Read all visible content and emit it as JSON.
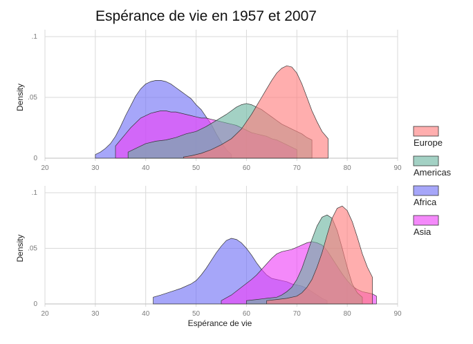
{
  "chart_data": {
    "type": "area",
    "title": "Espérance de vie en 1957 et 2007",
    "xlabel": "Espérance de vie",
    "ylabel": "Density",
    "xlim": [
      20,
      90
    ],
    "xticks": [
      20,
      30,
      40,
      50,
      60,
      70,
      80,
      90
    ],
    "ylim": [
      0,
      0.1
    ],
    "yticks": [
      {
        "value": 0,
        "label": "0"
      },
      {
        "value": 0.05,
        "label": ".05"
      },
      {
        "value": 0.1,
        "label": ".1"
      }
    ],
    "grid": true,
    "legend": {
      "placement": "right",
      "entries": [
        "Europe",
        "Americas",
        "Africa",
        "Asia"
      ]
    },
    "colors": {
      "Europe": "#ff7c7c",
      "Americas": "#6bb5a0",
      "Africa": "#6f6ff5",
      "Asia": "#ee40f7"
    },
    "panels": [
      {
        "year": 1957,
        "series": [
          {
            "name": "Africa",
            "x": [
              30,
              31,
              32,
              33,
              34,
              35,
              36,
              37,
              38,
              39,
              40,
              41,
              42,
              43,
              44,
              45,
              46,
              47,
              48,
              49,
              50,
              51,
              52,
              53,
              54,
              55,
              56,
              57
            ],
            "y": [
              0.003,
              0.005,
              0.008,
              0.012,
              0.018,
              0.026,
              0.035,
              0.043,
              0.051,
              0.057,
              0.061,
              0.063,
              0.064,
              0.064,
              0.063,
              0.061,
              0.058,
              0.055,
              0.052,
              0.049,
              0.044,
              0.04,
              0.034,
              0.028,
              0.02,
              0.013,
              0.007,
              0.003
            ]
          },
          {
            "name": "Asia",
            "x": [
              34,
              35,
              36,
              37,
              38,
              39,
              40,
              41,
              42,
              43,
              44,
              45,
              46,
              47,
              48,
              49,
              50,
              51,
              52,
              53,
              54,
              55,
              56,
              57,
              58,
              59,
              60,
              61,
              62,
              63,
              64,
              65,
              66,
              67,
              68,
              69,
              70
            ],
            "y": [
              0.01,
              0.015,
              0.02,
              0.025,
              0.029,
              0.033,
              0.035,
              0.037,
              0.038,
              0.039,
              0.039,
              0.038,
              0.038,
              0.037,
              0.036,
              0.035,
              0.034,
              0.033,
              0.033,
              0.032,
              0.031,
              0.03,
              0.029,
              0.028,
              0.027,
              0.025,
              0.023,
              0.021,
              0.02,
              0.019,
              0.018,
              0.016,
              0.015,
              0.013,
              0.011,
              0.009,
              0.007
            ]
          },
          {
            "name": "Americas",
            "x": [
              36.5,
              38,
              40,
              42,
              44,
              46,
              48,
              50,
              52,
              54,
              56,
              57,
              58,
              59,
              60,
              61,
              62,
              63,
              64,
              65,
              66,
              67,
              68,
              69,
              70,
              71,
              72,
              73
            ],
            "y": [
              0.005,
              0.008,
              0.012,
              0.014,
              0.015,
              0.017,
              0.02,
              0.022,
              0.026,
              0.031,
              0.036,
              0.039,
              0.042,
              0.044,
              0.045,
              0.044,
              0.042,
              0.04,
              0.037,
              0.034,
              0.031,
              0.028,
              0.026,
              0.024,
              0.022,
              0.02,
              0.017,
              0.015
            ]
          },
          {
            "name": "Europe",
            "x": [
              47.5,
              49,
              51,
              53,
              55,
              57,
              58,
              59,
              60,
              61,
              62,
              63,
              64,
              65,
              66,
              67,
              68,
              69,
              70,
              71,
              72,
              73,
              74,
              75,
              76.2
            ],
            "y": [
              0.001,
              0.002,
              0.004,
              0.007,
              0.011,
              0.016,
              0.02,
              0.024,
              0.03,
              0.036,
              0.043,
              0.05,
              0.057,
              0.064,
              0.07,
              0.074,
              0.076,
              0.075,
              0.07,
              0.061,
              0.05,
              0.039,
              0.03,
              0.022,
              0.016
            ]
          }
        ]
      },
      {
        "year": 2007,
        "series": [
          {
            "name": "Africa",
            "x": [
              41.5,
              43,
              45,
              47,
              49,
              50,
              51,
              52,
              53,
              54,
              55,
              56,
              57,
              58,
              59,
              60,
              61,
              62,
              63,
              64,
              65,
              66,
              67,
              68,
              69,
              70,
              71,
              72,
              73,
              74,
              75,
              76
            ],
            "y": [
              0.006,
              0.008,
              0.011,
              0.014,
              0.018,
              0.021,
              0.026,
              0.032,
              0.039,
              0.046,
              0.052,
              0.057,
              0.059,
              0.058,
              0.055,
              0.05,
              0.044,
              0.037,
              0.031,
              0.026,
              0.023,
              0.022,
              0.021,
              0.02,
              0.018,
              0.017,
              0.016,
              0.014,
              0.011,
              0.008,
              0.005,
              0.003
            ]
          },
          {
            "name": "Asia",
            "x": [
              55,
              57,
              59,
              61,
              62,
              63,
              64,
              65,
              66,
              67,
              68,
              69,
              70,
              71,
              72,
              73,
              74,
              75,
              76,
              77,
              78,
              79,
              80,
              81,
              82,
              83,
              84,
              85,
              85.8
            ],
            "y": [
              0.003,
              0.008,
              0.015,
              0.022,
              0.026,
              0.031,
              0.036,
              0.041,
              0.045,
              0.047,
              0.048,
              0.049,
              0.051,
              0.053,
              0.055,
              0.056,
              0.055,
              0.053,
              0.048,
              0.041,
              0.034,
              0.027,
              0.021,
              0.016,
              0.013,
              0.011,
              0.01,
              0.009,
              0.007
            ]
          },
          {
            "name": "Americas",
            "x": [
              60,
              62,
              64,
              66,
              67,
              68,
              69,
              70,
              71,
              72,
              73,
              74,
              75,
              76,
              77,
              78,
              79,
              80,
              81,
              82,
              83
            ],
            "y": [
              0.003,
              0.004,
              0.005,
              0.006,
              0.008,
              0.011,
              0.015,
              0.022,
              0.032,
              0.045,
              0.058,
              0.07,
              0.078,
              0.08,
              0.077,
              0.066,
              0.05,
              0.033,
              0.018,
              0.01,
              0.006
            ]
          },
          {
            "name": "Europe",
            "x": [
              64,
              66,
              68,
              70,
              71,
              72,
              73,
              74,
              75,
              76,
              77,
              78,
              79,
              80,
              81,
              82,
              83,
              84,
              85
            ],
            "y": [
              0.003,
              0.004,
              0.005,
              0.007,
              0.01,
              0.015,
              0.022,
              0.033,
              0.046,
              0.062,
              0.077,
              0.086,
              0.088,
              0.084,
              0.074,
              0.06,
              0.045,
              0.033,
              0.024
            ]
          }
        ]
      }
    ]
  }
}
